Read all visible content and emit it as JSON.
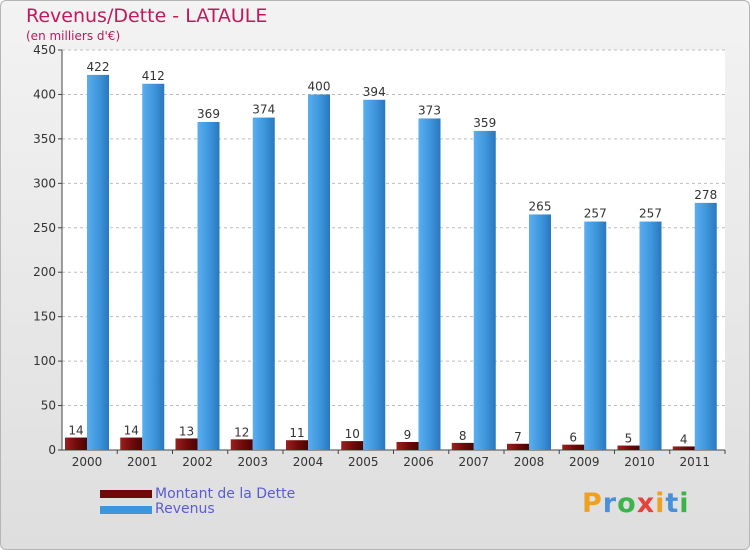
{
  "chart_data": {
    "type": "bar",
    "title": "Revenus/Dette - LATAULE",
    "subtitle": "(en milliers d'€)",
    "categories": [
      "2000",
      "2001",
      "2002",
      "2003",
      "2004",
      "2005",
      "2006",
      "2007",
      "2008",
      "2009",
      "2010",
      "2011"
    ],
    "series": [
      {
        "name": "Montant de la Dette",
        "color": "#6e0a0a",
        "values": [
          14,
          14,
          13,
          12,
          11,
          10,
          9,
          8,
          7,
          6,
          5,
          4
        ]
      },
      {
        "name": "Revenus",
        "color": "#3d95db",
        "values": [
          422,
          412,
          369,
          374,
          400,
          394,
          373,
          359,
          265,
          257,
          257,
          278
        ]
      }
    ],
    "ylim": [
      0,
      450
    ],
    "yticks": [
      0,
      50,
      100,
      150,
      200,
      250,
      300,
      350,
      400,
      450
    ],
    "grid": true,
    "legend": "bottom-left"
  },
  "legend": {
    "items": [
      {
        "label": "Montant de la Dette",
        "color": "#6e0a0a"
      },
      {
        "label": "Revenus",
        "color": "#3d95db"
      }
    ]
  },
  "brand": {
    "letters": [
      "P",
      "r",
      "o",
      "x",
      "i",
      "t",
      "i"
    ],
    "colors": [
      "#f0a020",
      "#4a90d9",
      "#3cb44b",
      "#e8403a",
      "#f0a020",
      "#4a90d9",
      "#3cb44b"
    ]
  }
}
